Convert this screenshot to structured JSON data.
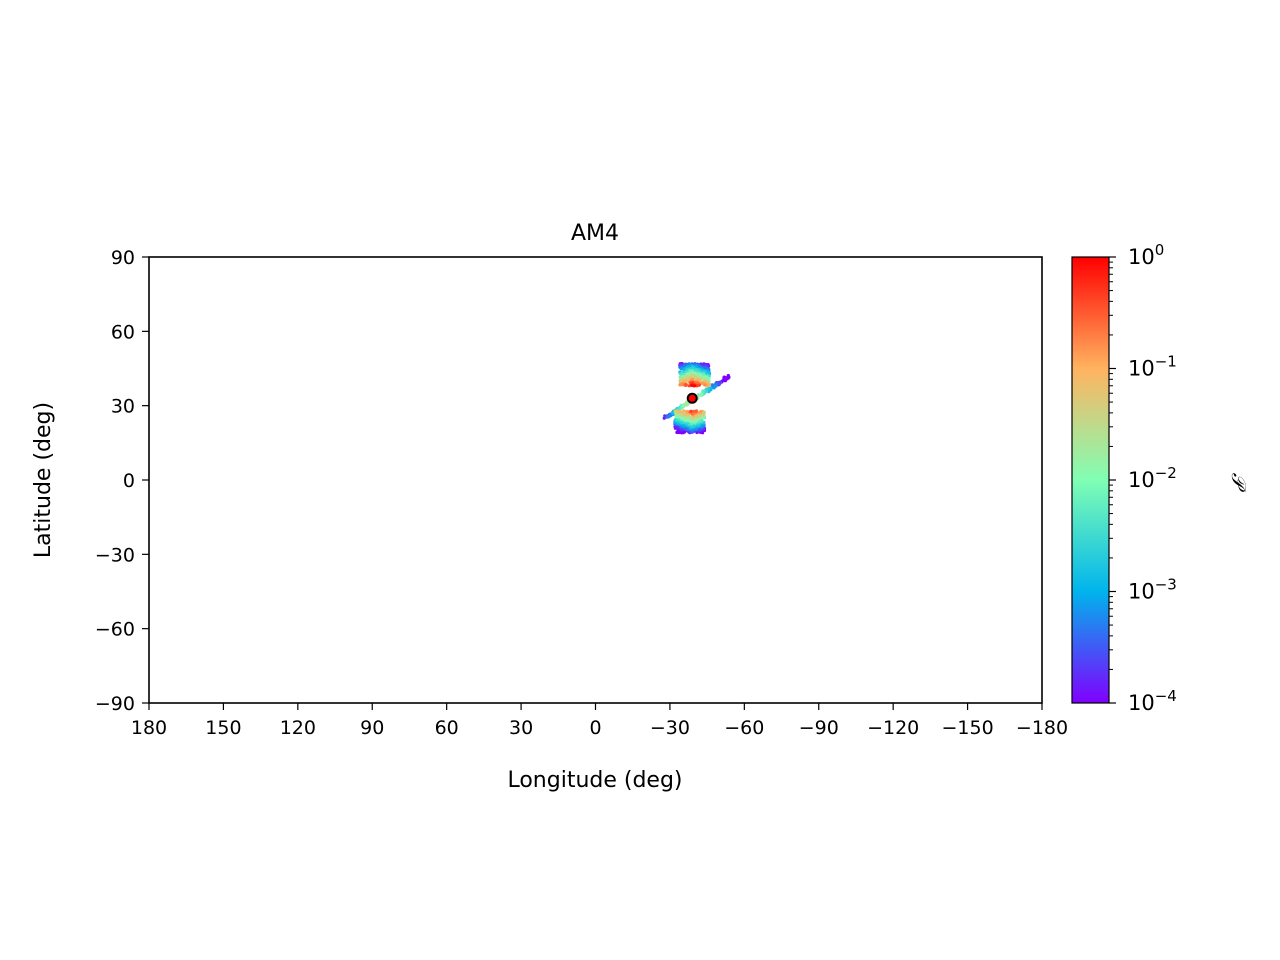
{
  "chart_data": {
    "type": "scatter",
    "title": "AM4",
    "xlabel": "Longitude (deg)",
    "ylabel": "Latitude (deg)",
    "xlim": [
      180,
      -180
    ],
    "ylim": [
      -90,
      90
    ],
    "x_ticks": [
      180,
      150,
      120,
      90,
      60,
      30,
      0,
      -30,
      -60,
      -90,
      -120,
      -150,
      -180
    ],
    "x_tick_labels": [
      "180",
      "150",
      "120",
      "90",
      "60",
      "30",
      "0",
      "−30",
      "−60",
      "−90",
      "−120",
      "−150",
      "−180"
    ],
    "y_ticks": [
      90,
      60,
      30,
      0,
      -30,
      -60,
      -90
    ],
    "y_tick_labels": [
      "90",
      "60",
      "30",
      "0",
      "−30",
      "−60",
      "−90"
    ],
    "grid": false,
    "colorbar": {
      "label": "𝒫",
      "scale": "log",
      "range": [
        0.0001,
        1
      ],
      "colormap": "rainbow",
      "colors": [
        "#8000ff",
        "#00b4ec",
        "#80ffb4",
        "#ffb360",
        "#ff0000"
      ],
      "ticks": [
        {
          "value": 1,
          "base": "10",
          "exp": "0"
        },
        {
          "value": 0.1,
          "base": "10",
          "exp": "−1"
        },
        {
          "value": 0.01,
          "base": "10",
          "exp": "−2"
        },
        {
          "value": 0.001,
          "base": "10",
          "exp": "−3"
        },
        {
          "value": 0.0001,
          "base": "10",
          "exp": "−4"
        }
      ]
    },
    "marker": {
      "lon": -39,
      "lat": 33,
      "color": "#ff0000",
      "edge": "#000000"
    },
    "distribution": {
      "description_center": [
        -39,
        33
      ],
      "northern_lobe": {
        "lon_range": [
          -34,
          -46
        ],
        "lat_range": [
          38,
          47
        ]
      },
      "southern_lobe": {
        "lon_range": [
          -32,
          -44
        ],
        "lat_range": [
          19,
          28
        ]
      },
      "diagonal_streak": {
        "from": [
          -28,
          25
        ],
        "to": [
          -54,
          42
        ]
      }
    }
  }
}
